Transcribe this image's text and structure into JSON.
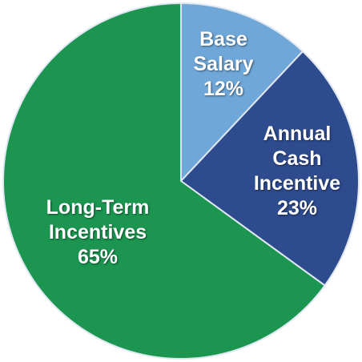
{
  "chart_data": {
    "type": "pie",
    "categories": [
      "Base Salary",
      "Annual Cash Incentive",
      "Long-Term Incentives"
    ],
    "values": [
      12,
      23,
      65
    ],
    "value_labels": [
      "12%",
      "23%",
      "65%"
    ],
    "colors": [
      "#6fa7d8",
      "#2e4b8e",
      "#1b9550"
    ]
  }
}
